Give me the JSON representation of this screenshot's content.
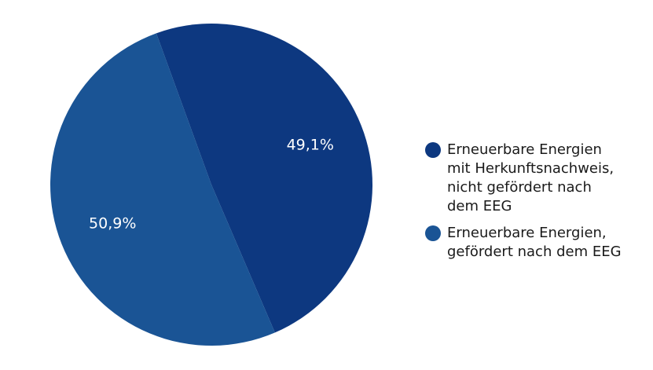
{
  "chart_data": {
    "type": "pie",
    "slices": [
      {
        "label": "Erneuerbare Energien\nmit Herkunftsnachweis,\nnicht gefördert nach\ndem EEG",
        "value": 49.1,
        "value_label": "49,1%",
        "color": "#0d3880"
      },
      {
        "label": "Erneuerbare Energien,\ngefördert nach dem EEG",
        "value": 50.9,
        "value_label": "50,9%",
        "color": "#1a5495"
      }
    ],
    "legend_position": "right"
  }
}
